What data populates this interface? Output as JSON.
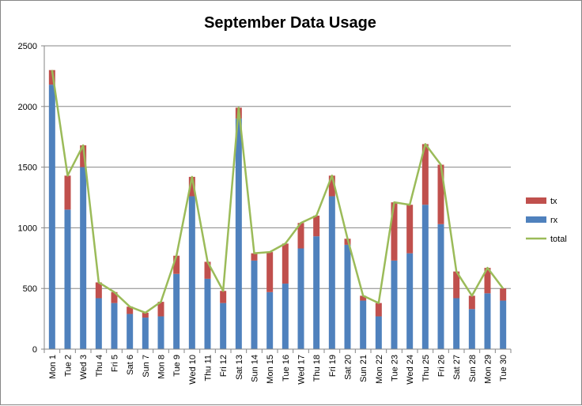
{
  "chart_data": {
    "type": "bar",
    "stacked": true,
    "title": "September Data Usage",
    "xlabel": "",
    "ylabel": "",
    "ylim": [
      0,
      2500
    ],
    "yticks": [
      0,
      500,
      1000,
      1500,
      2000,
      2500
    ],
    "grid": true,
    "legend_position": "right",
    "categories": [
      "Mon 1",
      "Tue 2",
      "Wed 3",
      "Thu 4",
      "Fri 5",
      "Sat 6",
      "Sun 7",
      "Mon 8",
      "Tue 9",
      "Wed 10",
      "Thu 11",
      "Fri 12",
      "Sat 13",
      "Sun 14",
      "Mon 15",
      "Tue 16",
      "Wed 17",
      "Thu 18",
      "Fri 19",
      "Sat 20",
      "Sun 21",
      "Mon 22",
      "Tue 23",
      "Wed 24",
      "Thu 25",
      "Fri 26",
      "Sat 27",
      "Sun 28",
      "Mon 29",
      "Tue 30"
    ],
    "series": [
      {
        "name": "rx",
        "kind": "bar",
        "color": "#4f81bd",
        "values": [
          2180,
          1150,
          1500,
          420,
          380,
          290,
          260,
          270,
          620,
          1260,
          580,
          380,
          1900,
          730,
          470,
          540,
          830,
          930,
          1260,
          860,
          400,
          270,
          730,
          790,
          1190,
          1030,
          420,
          330,
          460,
          400
        ]
      },
      {
        "name": "tx",
        "kind": "bar",
        "color": "#c0504d",
        "values": [
          120,
          280,
          180,
          130,
          90,
          60,
          40,
          120,
          150,
          160,
          140,
          100,
          90,
          60,
          330,
          330,
          210,
          170,
          170,
          50,
          40,
          110,
          480,
          400,
          500,
          490,
          220,
          110,
          210,
          100
        ]
      },
      {
        "name": "total",
        "kind": "line",
        "color": "#9bbb59",
        "values": [
          2300,
          1430,
          1680,
          550,
          470,
          350,
          300,
          390,
          770,
          1420,
          720,
          480,
          1990,
          790,
          800,
          870,
          1040,
          1100,
          1430,
          910,
          440,
          380,
          1210,
          1190,
          1690,
          1520,
          640,
          440,
          670,
          500
        ]
      }
    ]
  }
}
